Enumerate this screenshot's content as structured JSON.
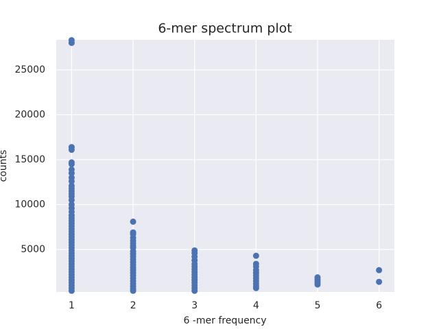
{
  "chart_data": {
    "type": "scatter",
    "title": "6-mer spectrum plot",
    "x_label": "6 -mer frequency",
    "y_label": "counts",
    "color": "#4c72b0",
    "grid": true,
    "xlim": [
      0.75,
      6.25
    ],
    "xticks": [
      1,
      2,
      3,
      4,
      5,
      6
    ],
    "ylim": [
      270,
      28350
    ],
    "yticks": [
      5000,
      10000,
      15000,
      20000,
      25000
    ],
    "x": [
      1,
      1,
      1,
      1,
      1,
      1,
      1,
      1,
      1,
      1,
      1,
      1,
      1,
      1,
      1,
      1,
      1,
      1,
      1,
      1,
      1,
      1,
      1,
      1,
      1,
      1,
      1,
      1,
      1,
      1,
      1,
      1,
      1,
      1,
      1,
      1,
      1,
      1,
      1,
      1,
      1,
      1,
      1,
      1,
      1,
      1,
      1,
      1,
      2,
      2,
      2,
      2,
      2,
      2,
      2,
      2,
      2,
      2,
      2,
      2,
      2,
      2,
      2,
      2,
      2,
      2,
      2,
      2,
      2,
      2,
      2,
      2,
      3,
      3,
      3,
      3,
      3,
      3,
      3,
      3,
      3,
      3,
      3,
      3,
      3,
      3,
      3,
      4,
      4,
      4,
      4,
      4,
      4,
      4,
      4,
      4,
      4,
      4,
      5,
      5,
      5,
      5,
      5,
      6,
      6
    ],
    "y": [
      28300,
      28000,
      16400,
      16100,
      14700,
      14500,
      13900,
      13500,
      13000,
      12600,
      12100,
      11800,
      11500,
      11200,
      10900,
      10500,
      10000,
      9600,
      9200,
      8800,
      8500,
      8200,
      7900,
      7600,
      7300,
      7000,
      6700,
      6400,
      6100,
      5800,
      5500,
      5200,
      4900,
      4600,
      4300,
      4000,
      3700,
      3400,
      3100,
      2800,
      2500,
      2200,
      1900,
      1600,
      1300,
      1000,
      700,
      400,
      8100,
      6900,
      6700,
      6300,
      6000,
      5700,
      5400,
      5200,
      4800,
      4500,
      4200,
      3900,
      3600,
      3300,
      3000,
      2700,
      2400,
      2100,
      1800,
      1500,
      1200,
      900,
      600,
      400,
      4900,
      4600,
      4200,
      3800,
      3400,
      3100,
      2800,
      2500,
      2200,
      1900,
      1600,
      1300,
      1000,
      700,
      400,
      4300,
      3400,
      3100,
      2700,
      2400,
      2100,
      1800,
      1500,
      1200,
      900,
      700,
      1900,
      1700,
      1500,
      1300,
      1100,
      2700,
      1400
    ]
  }
}
